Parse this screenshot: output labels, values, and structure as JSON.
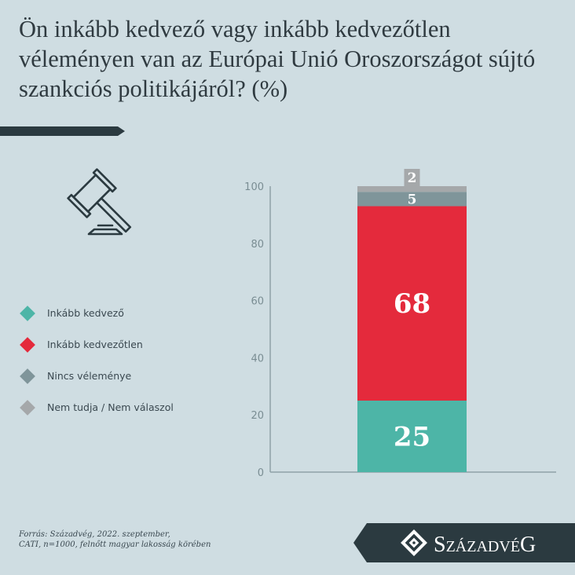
{
  "chart_data": {
    "type": "bar",
    "stacked": true,
    "title": "Ön inkább kedvező vagy inkább kedvezőtlen véleményen van az Európai Unió Oroszországot sújtó szankciós politikájáról? (%)",
    "categories": [
      ""
    ],
    "series": [
      {
        "name": "Inkább kedvező",
        "values": [
          25
        ],
        "color": "#4db5a7"
      },
      {
        "name": "Inkább kedvezőtlen",
        "values": [
          68
        ],
        "color": "#e42a3c"
      },
      {
        "name": "Nincs véleménye",
        "values": [
          5
        ],
        "color": "#7f959a"
      },
      {
        "name": "Nem tudja / Nem válaszol",
        "values": [
          2
        ],
        "color": "#a5a8aa"
      }
    ],
    "ylim": [
      0,
      100
    ],
    "yticks": [
      "0",
      "20",
      "40",
      "60",
      "80",
      "100"
    ],
    "xlabel": "",
    "ylabel": "",
    "legend_position": "left",
    "grid": false
  },
  "source": {
    "line1": "Forrás: Századvég, 2022. szeptember,",
    "line2": "CATI, n=1000, felnőtt magyar lakosság körében"
  },
  "logo": {
    "text": "SZÁZADVÉG"
  },
  "colors": {
    "background": "#cfdde2",
    "dark": "#2b3a40",
    "axis": "#8fa2a8",
    "tick_text": "#7a8d93"
  },
  "icons": {
    "illustration": "gavel-icon",
    "logo_mark": "diamond-logo-icon"
  }
}
